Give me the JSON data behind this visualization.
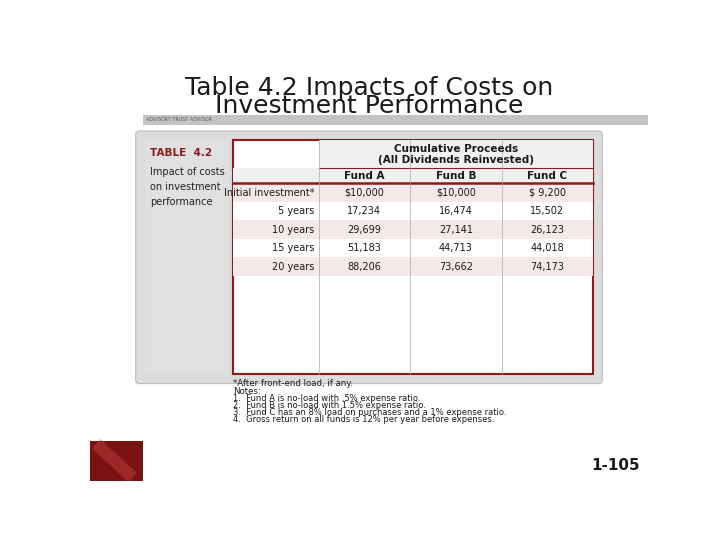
{
  "title_line1": "Table 4.2 Impacts of Costs on",
  "title_line2": "Investment Performance",
  "title_fontsize": 18,
  "title_color": "#1a1a1a",
  "bg_color": "#ffffff",
  "sidebar_label": "TABLE  4.2",
  "sidebar_label_color": "#8b1a1a",
  "sidebar_desc": "Impact of costs\non investment\nperformance",
  "header1": "Cumulative Proceeds",
  "header2": "(All Dividends Reinvested)",
  "col_headers": [
    "Fund A",
    "Fund B",
    "Fund C"
  ],
  "row_labels": [
    "Initial investment*",
    "5 years",
    "10 years",
    "15 years",
    "20 years"
  ],
  "data": [
    [
      "$10,000",
      "$10,000",
      "$ 9,200"
    ],
    [
      "17,234",
      "16,474",
      "15,502"
    ],
    [
      "29,699",
      "27,141",
      "26,123"
    ],
    [
      "51,183",
      "44,713",
      "44,018"
    ],
    [
      "88,206",
      "73,662",
      "74,173"
    ]
  ],
  "footnote_star": "*After front-end load, if any.",
  "notes_title": "Notes:",
  "notes": [
    "1.  Fund A is no-load with .5% expense ratio.",
    "2.  Fund B is no-load with 1.5% expense ratio.",
    "3.  Fund C has an 8% load on purchases and a 1% expense ratio.",
    "4.  Gross return on all funds is 12% per year before expenses."
  ],
  "footer_number": "1-105",
  "row_fill_odd": "#f5e8e8",
  "row_fill_even": "#ffffff",
  "border_color": "#8b1a1a",
  "outer_bg": "#dcdcdc",
  "sidebar_bg": "#e0e0e0"
}
